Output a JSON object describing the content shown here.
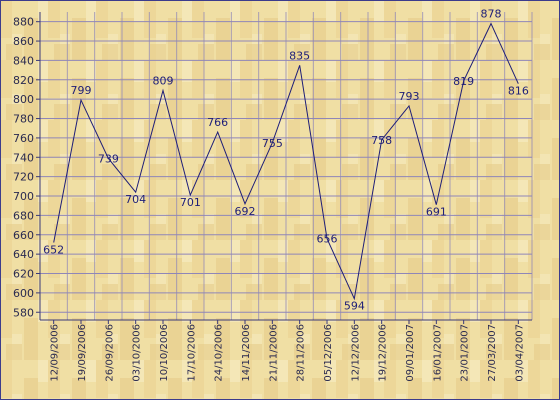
{
  "chart_data": {
    "type": "line",
    "x": [
      "12/09/2006",
      "19/09/2006",
      "26/09/2006",
      "03/10/2006",
      "10/10/2006",
      "17/10/2006",
      "24/10/2006",
      "14/11/2006",
      "21/11/2006",
      "28/11/2006",
      "05/12/2006",
      "12/12/2006",
      "19/12/2006",
      "09/01/2007",
      "16/01/2007",
      "23/01/2007",
      "27/03/2007",
      "03/04/2007"
    ],
    "series": [
      {
        "values": [
          652,
          799,
          739,
          704,
          809,
          701,
          766,
          692,
          755,
          835,
          656,
          594,
          758,
          793,
          691,
          819,
          878,
          816
        ]
      }
    ],
    "y_ticks": [
      580,
      600,
      620,
      640,
      660,
      680,
      700,
      720,
      740,
      760,
      780,
      800,
      820,
      840,
      860,
      880
    ],
    "ylim": [
      572,
      890
    ],
    "grid": true,
    "legend": "none",
    "colors": {
      "line": "#1e1e78",
      "grid": "#8f86b8",
      "axis": "#3a3a7a",
      "background": "#f0dfa4",
      "frame": "#3c3c8c"
    }
  }
}
